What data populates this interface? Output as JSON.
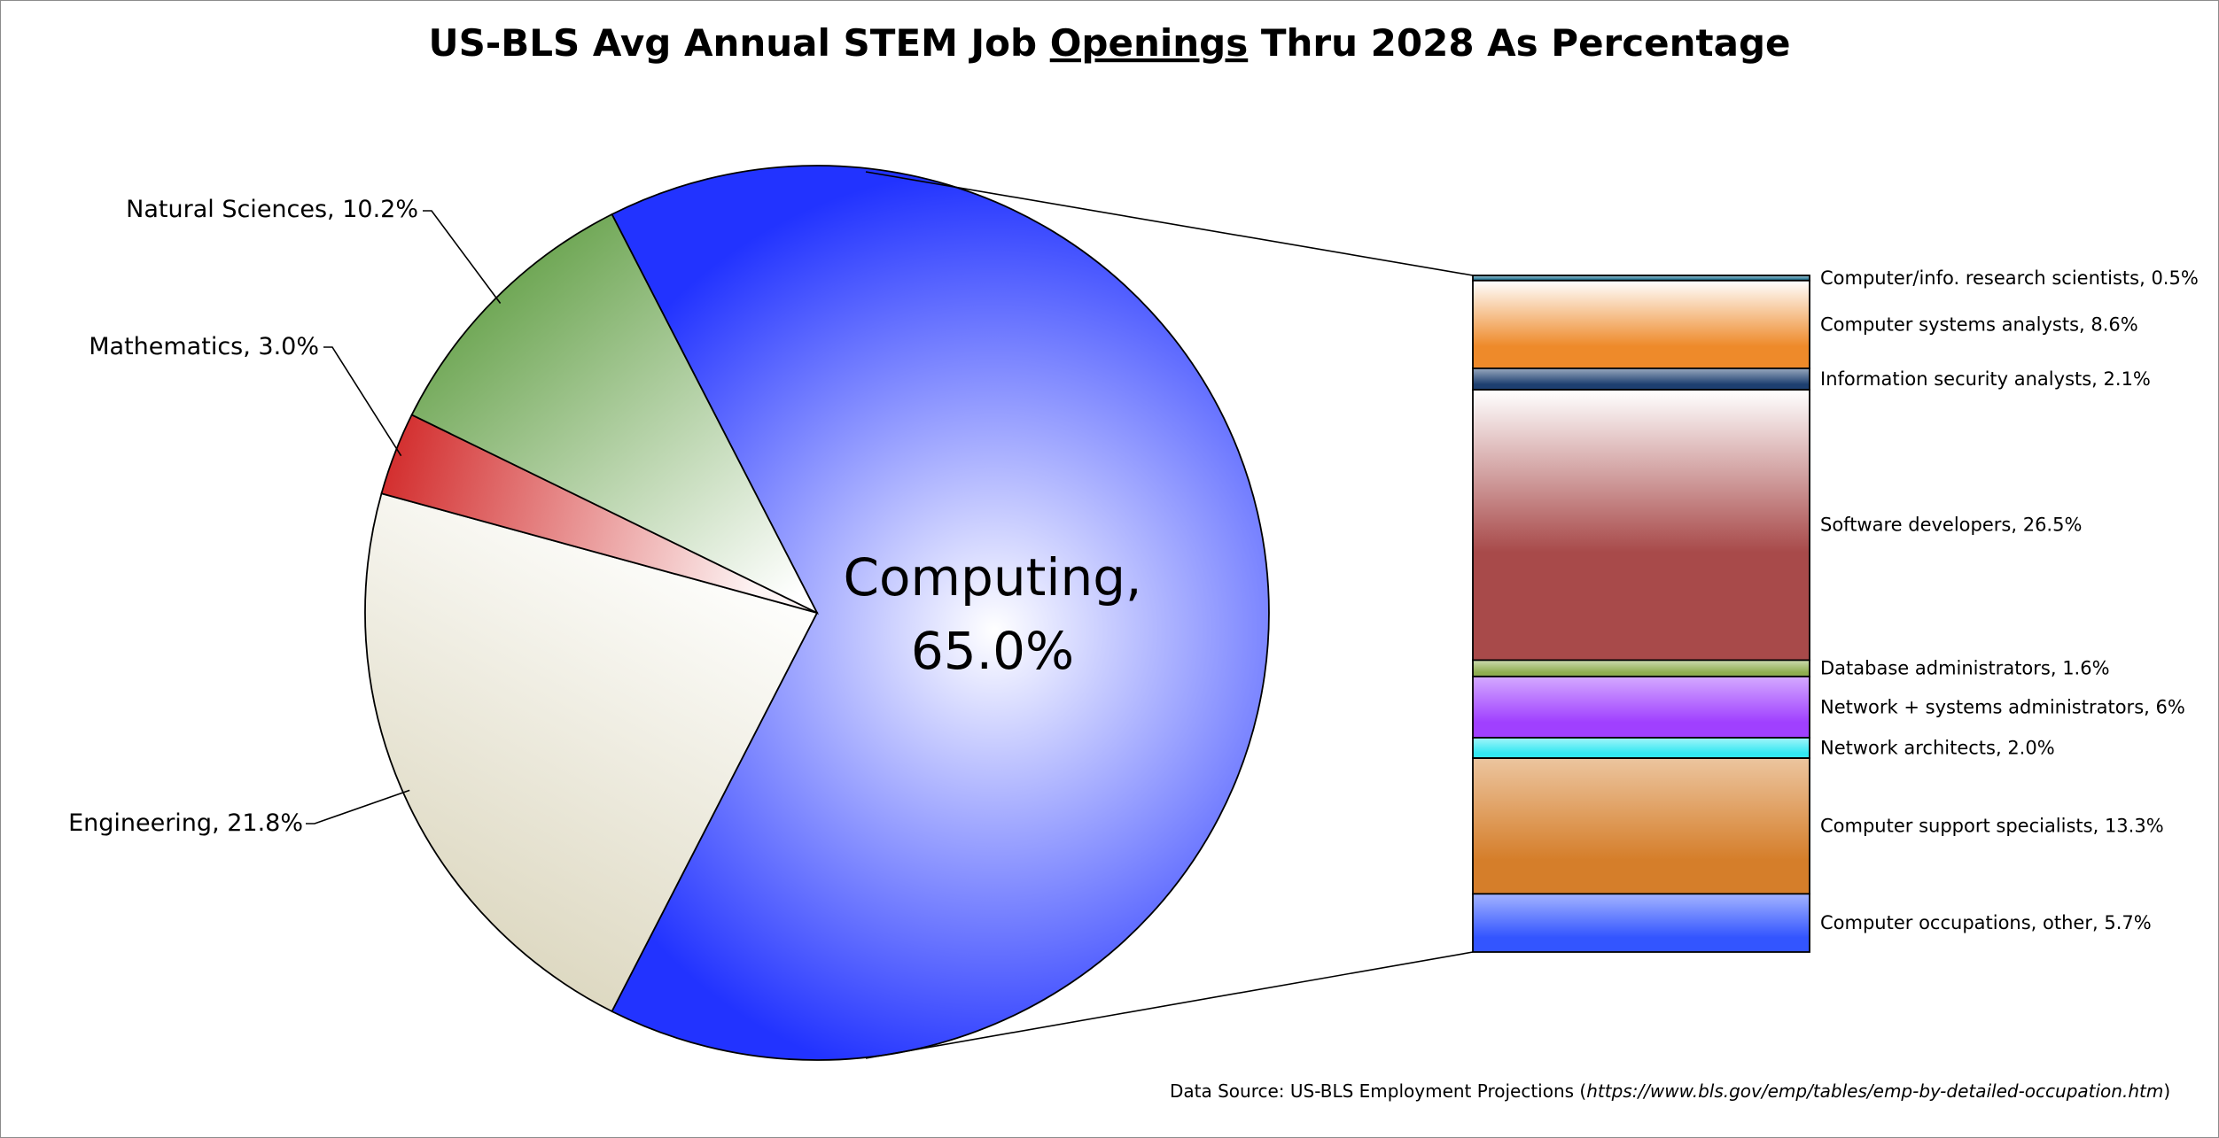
{
  "chart_data": {
    "type": "pie",
    "variant": "bar-of-pie",
    "title": {
      "prefix": "US-BLS Avg Annual STEM Job ",
      "underlined": "Openings",
      "suffix": " Thru 2028 As Percentage"
    },
    "slices": [
      {
        "name": "Computing",
        "value": 65.0,
        "label": "Computing,",
        "value_label": "65.0%",
        "color": "#2233ff"
      },
      {
        "name": "Engineering",
        "value": 21.8,
        "label": "Engineering, 21.8%",
        "color": "#d6d0b4"
      },
      {
        "name": "Mathematics",
        "value": 3.0,
        "label": "Mathematics, 3.0%",
        "color": "#d22a2a"
      },
      {
        "name": "Natural Sciences",
        "value": 10.2,
        "label": "Natural Sciences, 10.2%",
        "color": "#5a9a3c"
      }
    ],
    "breakdown_of": "Computing",
    "breakdown": [
      {
        "name": "Computer/info. research scientists",
        "value": 0.5,
        "label": "Computer/info. research scientists, 0.5%",
        "color": "#2e7d9a"
      },
      {
        "name": "Computer systems analysts",
        "value": 8.6,
        "label": "Computer systems analysts, 8.6%",
        "color": "#ee8a2a"
      },
      {
        "name": "Information security analysts",
        "value": 2.1,
        "label": "Information security analysts, 2.1%",
        "color": "#1d3f70"
      },
      {
        "name": "Software developers",
        "value": 26.5,
        "label": "Software developers, 26.5%",
        "color": "#a84a4a"
      },
      {
        "name": "Database administrators",
        "value": 1.6,
        "label": "Database administrators, 1.6%",
        "color": "#8fae50"
      },
      {
        "name": "Network + systems administrators",
        "value": 6,
        "label": "Network + systems administrators, 6%",
        "color": "#a040ff"
      },
      {
        "name": "Network architects",
        "value": 2.0,
        "label": "Network architects, 2.0%",
        "color": "#33e8f2"
      },
      {
        "name": "Computer support specialists",
        "value": 13.3,
        "label": "Computer support specialists, 13.3%",
        "color": "#d57e2a"
      },
      {
        "name": "Computer occupations, other",
        "value": 5.7,
        "label": "Computer occupations, other, 5.7%",
        "color": "#3355ff"
      }
    ],
    "source": {
      "prefix": "Data Source: US-BLS Employment Projections (",
      "url": "https://www.bls.gov/emp/tables/emp-by-detailed-occupation.htm",
      "suffix": ")"
    }
  }
}
